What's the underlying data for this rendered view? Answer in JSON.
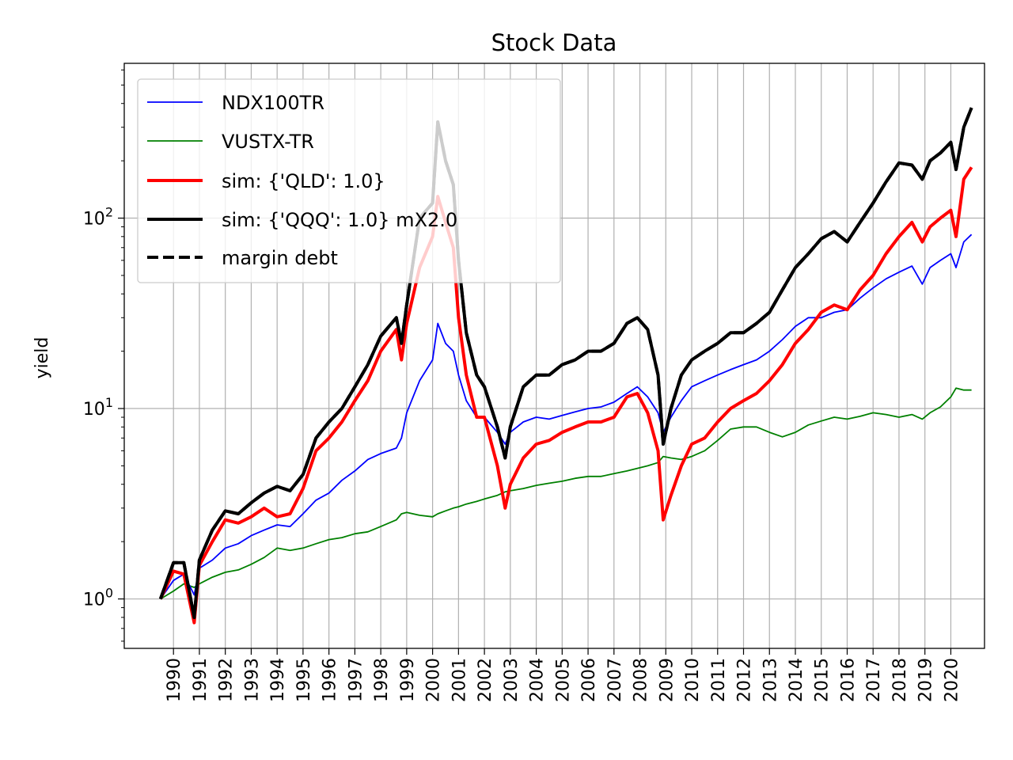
{
  "chart_data": {
    "type": "line",
    "title": "Stock Data",
    "xlabel": "",
    "ylabel": "yield",
    "yscale": "log",
    "ylim": [
      0.55,
      650
    ],
    "xlim": [
      1988.1,
      2021.3
    ],
    "y_tick_labels": [
      {
        "base": "10",
        "exp": "0",
        "value": 1
      },
      {
        "base": "10",
        "exp": "1",
        "value": 10
      },
      {
        "base": "10",
        "exp": "2",
        "value": 100
      }
    ],
    "x_tick_labels": [
      "1990",
      "1991",
      "1992",
      "1993",
      "1994",
      "1995",
      "1996",
      "1997",
      "1998",
      "1999",
      "2000",
      "2001",
      "2002",
      "2003",
      "2004",
      "2005",
      "2006",
      "2007",
      "2008",
      "2009",
      "2010",
      "2011",
      "2012",
      "2013",
      "2014",
      "2015",
      "2016",
      "2017",
      "2018",
      "2019",
      "2020"
    ],
    "grid": true,
    "legend_position": "upper-left",
    "x": [
      1989.5,
      1990.0,
      1990.4,
      1990.8,
      1991.0,
      1991.5,
      1992.0,
      1992.5,
      1993.0,
      1993.5,
      1994.0,
      1994.5,
      1995.0,
      1995.5,
      1996.0,
      1996.5,
      1997.0,
      1997.5,
      1998.0,
      1998.6,
      1998.8,
      1999.0,
      1999.5,
      2000.0,
      2000.2,
      2000.5,
      2000.8,
      2001.0,
      2001.3,
      2001.7,
      2002.0,
      2002.5,
      2002.8,
      2003.0,
      2003.5,
      2004.0,
      2004.5,
      2005.0,
      2005.5,
      2006.0,
      2006.5,
      2007.0,
      2007.5,
      2007.9,
      2008.3,
      2008.7,
      2008.9,
      2009.2,
      2009.6,
      2010.0,
      2010.5,
      2011.0,
      2011.5,
      2012.0,
      2012.5,
      2013.0,
      2013.5,
      2014.0,
      2014.5,
      2015.0,
      2015.5,
      2016.0,
      2016.5,
      2017.0,
      2017.5,
      2018.0,
      2018.5,
      2018.9,
      2019.2,
      2019.6,
      2020.0,
      2020.2,
      2020.5,
      2020.8
    ],
    "series": [
      {
        "name": "NDX100TR",
        "color": "#0000ff",
        "style": "solid",
        "weight": "thin",
        "values": [
          1.0,
          1.25,
          1.35,
          1.05,
          1.45,
          1.6,
          1.85,
          1.95,
          2.15,
          2.3,
          2.45,
          2.4,
          2.8,
          3.3,
          3.6,
          4.2,
          4.7,
          5.4,
          5.8,
          6.2,
          7.0,
          9.5,
          14,
          18,
          28,
          22,
          20,
          15,
          11,
          9,
          9,
          7.5,
          6.5,
          7.5,
          8.5,
          9.0,
          8.8,
          9.2,
          9.6,
          10.0,
          10.2,
          10.8,
          12,
          13,
          11.5,
          9.5,
          7.5,
          9,
          11,
          13,
          14,
          15,
          16,
          17,
          18,
          20,
          23,
          27,
          30,
          30,
          32,
          33,
          38,
          43,
          48,
          52,
          56,
          45,
          55,
          60,
          65,
          55,
          75,
          82
        ]
      },
      {
        "name": "VUSTX-TR",
        "color": "#008000",
        "style": "solid",
        "weight": "thin",
        "values": [
          1.0,
          1.1,
          1.2,
          1.15,
          1.2,
          1.3,
          1.38,
          1.42,
          1.52,
          1.65,
          1.85,
          1.8,
          1.85,
          1.95,
          2.05,
          2.1,
          2.2,
          2.25,
          2.4,
          2.6,
          2.8,
          2.85,
          2.75,
          2.7,
          2.8,
          2.9,
          3.0,
          3.05,
          3.15,
          3.25,
          3.35,
          3.5,
          3.65,
          3.7,
          3.8,
          3.95,
          4.05,
          4.15,
          4.3,
          4.4,
          4.4,
          4.55,
          4.7,
          4.85,
          5.0,
          5.2,
          5.6,
          5.5,
          5.4,
          5.6,
          6.0,
          6.8,
          7.8,
          8.0,
          8.0,
          7.5,
          7.1,
          7.5,
          8.2,
          8.6,
          9.0,
          8.8,
          9.1,
          9.5,
          9.3,
          9.0,
          9.3,
          8.8,
          9.5,
          10.2,
          11.5,
          12.8,
          12.5,
          12.5
        ]
      },
      {
        "name": "sim: {'QLD': 1.0}",
        "color": "#ff0000",
        "style": "solid",
        "weight": "thick",
        "values": [
          1.0,
          1.4,
          1.35,
          0.75,
          1.5,
          2.0,
          2.6,
          2.5,
          2.7,
          3.0,
          2.7,
          2.8,
          3.8,
          6.0,
          7.0,
          8.5,
          11,
          14,
          20,
          26,
          18,
          28,
          55,
          80,
          130,
          95,
          70,
          30,
          15,
          9,
          9,
          5,
          3.0,
          4.0,
          5.5,
          6.5,
          6.8,
          7.5,
          8,
          8.5,
          8.5,
          9.0,
          11.5,
          12,
          9.5,
          6.0,
          2.6,
          3.5,
          5.0,
          6.5,
          7.0,
          8.5,
          10,
          11,
          12,
          14,
          17,
          22,
          26,
          32,
          35,
          33,
          42,
          50,
          65,
          80,
          95,
          75,
          90,
          100,
          110,
          80,
          160,
          185
        ]
      },
      {
        "name": "sim: {'QQQ': 1.0} mX2.0",
        "color": "#000000",
        "style": "solid",
        "weight": "thick",
        "values": [
          1.0,
          1.55,
          1.55,
          0.8,
          1.6,
          2.3,
          2.9,
          2.8,
          3.2,
          3.6,
          3.9,
          3.7,
          4.5,
          7.0,
          8.5,
          10,
          13,
          17,
          24,
          30,
          22,
          35,
          100,
          120,
          320,
          200,
          150,
          60,
          25,
          15,
          13,
          8,
          5.5,
          8,
          13,
          15,
          15,
          17,
          18,
          20,
          20,
          22,
          28,
          30,
          26,
          15,
          6.5,
          10,
          15,
          18,
          20,
          22,
          25,
          25,
          28,
          32,
          42,
          55,
          65,
          78,
          85,
          75,
          95,
          120,
          155,
          195,
          190,
          160,
          200,
          220,
          250,
          180,
          300,
          380
        ]
      },
      {
        "name": "margin debt",
        "color": "#000000",
        "style": "dashed",
        "weight": "thick",
        "values": [
          1.0,
          1.55,
          1.55,
          0.8,
          1.6,
          2.3,
          2.9,
          2.8,
          3.2,
          3.6,
          3.9,
          3.7,
          4.5,
          7.0,
          8.5,
          10,
          13,
          17,
          24,
          30,
          22,
          35,
          100,
          120,
          320,
          200,
          150,
          60,
          25,
          15,
          13,
          8,
          5.5,
          8,
          13,
          15,
          15,
          17,
          18,
          20,
          20,
          22,
          28,
          30,
          26,
          15,
          6.5,
          10,
          15,
          18,
          20,
          22,
          25,
          25,
          28,
          32,
          42,
          55,
          65,
          78,
          85,
          75,
          95,
          120,
          155,
          195,
          190,
          160,
          200,
          220,
          250,
          180,
          300,
          380
        ]
      }
    ]
  }
}
